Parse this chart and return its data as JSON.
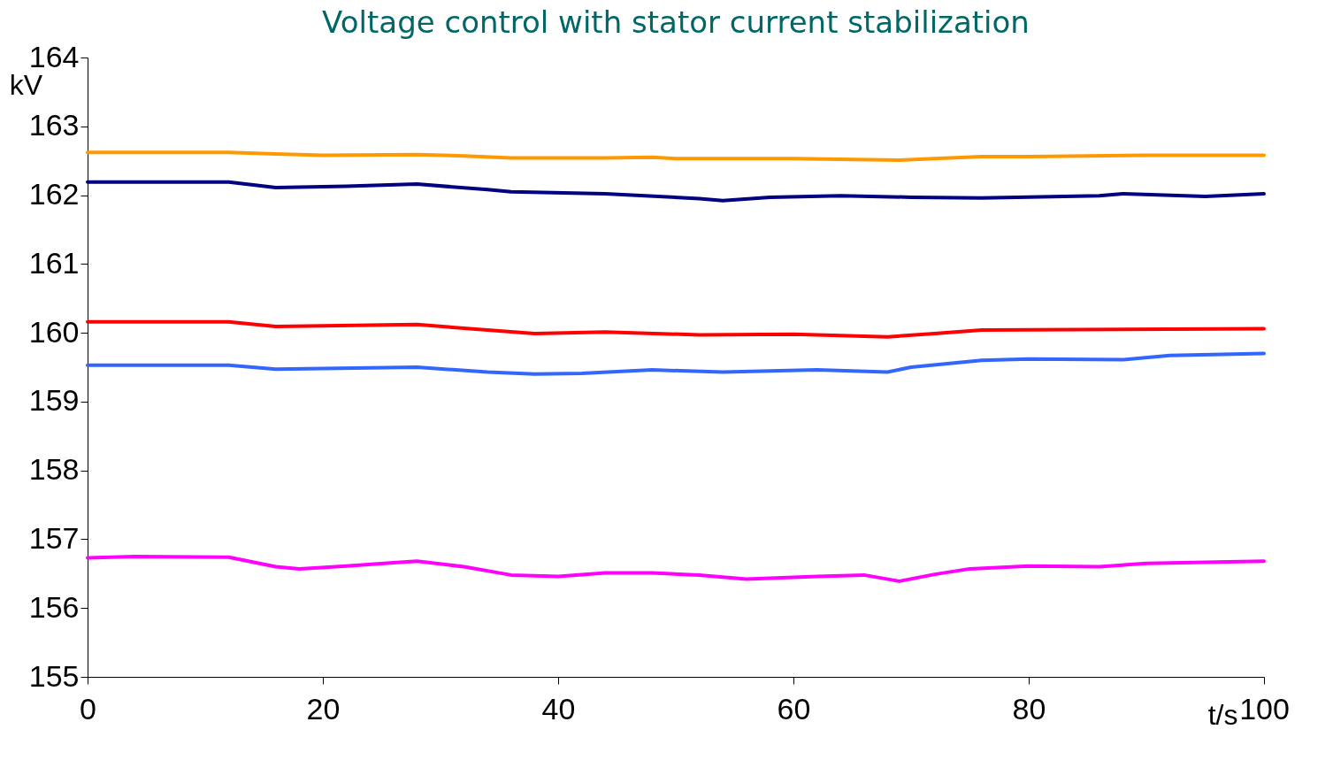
{
  "chart_data": {
    "type": "line",
    "title": "Voltage control with stator current stabilization",
    "xlabel": "t/s",
    "ylabel": "kV",
    "xlim": [
      0,
      100
    ],
    "xticks": [
      0,
      20,
      40,
      60,
      80,
      100
    ],
    "ylim": [
      155,
      164
    ],
    "yticks": [
      155,
      156,
      157,
      158,
      159,
      160,
      161,
      162,
      163,
      164
    ],
    "grid": false,
    "legend": false,
    "marker": "none",
    "line_style": "solid",
    "series": [
      {
        "color": "#ff9900",
        "x": [
          0,
          12,
          16,
          20,
          28,
          32,
          36,
          44,
          48,
          50,
          60,
          69,
          72,
          76,
          80,
          90,
          100
        ],
        "values": [
          162.62,
          162.62,
          162.6,
          162.58,
          162.59,
          162.57,
          162.54,
          162.54,
          162.55,
          162.53,
          162.53,
          162.51,
          162.53,
          162.56,
          162.56,
          162.58,
          162.58
        ]
      },
      {
        "color": "#000080",
        "x": [
          0,
          12,
          16,
          22,
          28,
          34,
          36,
          44,
          52,
          54,
          58,
          64,
          70,
          76,
          86,
          88,
          95,
          100
        ],
        "values": [
          162.19,
          162.19,
          162.11,
          162.13,
          162.16,
          162.08,
          162.05,
          162.02,
          161.95,
          161.92,
          161.97,
          161.99,
          161.97,
          161.96,
          161.99,
          162.02,
          161.98,
          162.02
        ]
      },
      {
        "color": "#ff0000",
        "x": [
          0,
          12,
          16,
          20,
          28,
          34,
          38,
          44,
          52,
          60,
          68,
          72,
          76,
          100
        ],
        "values": [
          160.16,
          160.16,
          160.09,
          160.1,
          160.12,
          160.04,
          159.99,
          160.01,
          159.97,
          159.98,
          159.94,
          159.99,
          160.04,
          160.06
        ]
      },
      {
        "color": "#3366ff",
        "x": [
          0,
          12,
          16,
          20,
          28,
          34,
          38,
          42,
          48,
          54,
          62,
          68,
          70,
          76,
          80,
          88,
          92,
          100
        ],
        "values": [
          159.53,
          159.53,
          159.47,
          159.48,
          159.5,
          159.43,
          159.4,
          159.41,
          159.46,
          159.43,
          159.46,
          159.43,
          159.5,
          159.6,
          159.62,
          159.61,
          159.67,
          159.7
        ]
      },
      {
        "color": "#ff00ff",
        "x": [
          0,
          4,
          12,
          16,
          18,
          22,
          26,
          28,
          32,
          36,
          40,
          44,
          48,
          52,
          56,
          62,
          66,
          69,
          72,
          75,
          80,
          86,
          90,
          100
        ],
        "values": [
          156.73,
          156.75,
          156.74,
          156.6,
          156.57,
          156.61,
          156.66,
          156.68,
          156.6,
          156.48,
          156.46,
          156.51,
          156.51,
          156.48,
          156.42,
          156.46,
          156.48,
          156.39,
          156.49,
          156.57,
          156.61,
          156.6,
          156.65,
          156.68
        ]
      }
    ]
  }
}
